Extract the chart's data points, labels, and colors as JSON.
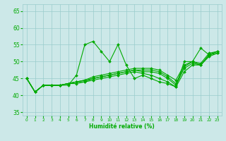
{
  "xlabel": "Humidité relative (%)",
  "bg_color": "#cce8e8",
  "grid_color": "#99cccc",
  "line_color": "#00aa00",
  "xlim": [
    -0.5,
    23.5
  ],
  "ylim": [
    34,
    67
  ],
  "yticks": [
    35,
    40,
    45,
    50,
    55,
    60,
    65
  ],
  "xticks": [
    0,
    1,
    2,
    3,
    4,
    5,
    6,
    7,
    8,
    9,
    10,
    11,
    12,
    13,
    14,
    15,
    16,
    17,
    18,
    19,
    20,
    21,
    22,
    23
  ],
  "series": [
    [
      45,
      41,
      43,
      43,
      43,
      43,
      46,
      55,
      56,
      53,
      50,
      55,
      49,
      45,
      46,
      45,
      44,
      43.5,
      42.5,
      50,
      50,
      54,
      52,
      53
    ],
    [
      45,
      41,
      43,
      43,
      43,
      43.5,
      44,
      44.5,
      45.5,
      46,
      46.5,
      47,
      47.5,
      48,
      48,
      48,
      47.5,
      46,
      44.5,
      49,
      50,
      49.5,
      52.5,
      53
    ],
    [
      45,
      41,
      43,
      43,
      43,
      43.5,
      44,
      44.5,
      45,
      45.5,
      46,
      46.5,
      47,
      47.5,
      47.5,
      47.5,
      47,
      45.5,
      43.5,
      48.5,
      50,
      49,
      52,
      53
    ],
    [
      45,
      41,
      43,
      43,
      43,
      43.5,
      44,
      44,
      45,
      45.5,
      46,
      46.5,
      47,
      47.5,
      47,
      47,
      46.5,
      45,
      43,
      48,
      49.5,
      49,
      52,
      52.5
    ],
    [
      45,
      41,
      43,
      43,
      43,
      43.5,
      43.5,
      44,
      44.5,
      45,
      45.5,
      46,
      46.5,
      47,
      46.5,
      46,
      45,
      44,
      42.5,
      47,
      49,
      49,
      51.5,
      52.5
    ]
  ]
}
